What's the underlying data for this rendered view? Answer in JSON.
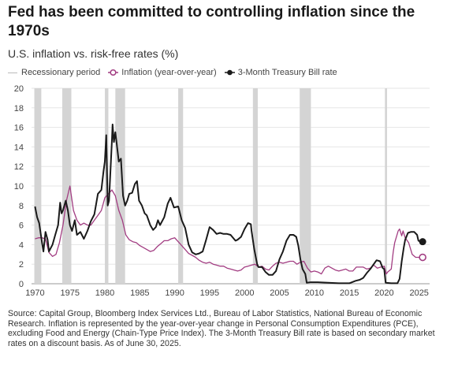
{
  "header": {
    "title": "Fed has been committed to controlling inflation since the 1970s",
    "subtitle": "U.S. inflation vs. risk-free rates (%)"
  },
  "legend": {
    "recession": "Recessionary period",
    "inflation": "Inflation (year-over-year)",
    "tbill": "3-Month Treasury Bill rate"
  },
  "footer": {
    "source": "Source: Capital Group, Bloomberg Index Services Ltd., Bureau of Labor Statistics, National Bureau of Economic Research. Inflation is represented by the year-over-year change in Personal Consumption Expenditures (PCE), excluding Food and Energy (Chain-Type Price Index). The 3-Month Treasury Bill rate is based on secondary market rates on a discount basis. As of June 30, 2025."
  },
  "colors": {
    "inflation": "#a23d82",
    "tbill": "#1a1a1a",
    "recession": "#d4d4d4",
    "grid": "#e6e6e6"
  },
  "chart_data": {
    "type": "line",
    "title": "Fed has been committed to controlling inflation since the 1970s",
    "subtitle": "U.S. inflation vs. risk-free rates (%)",
    "xlim": [
      1969.5,
      2026.5
    ],
    "ylim": [
      0,
      20
    ],
    "x_ticks": [
      "1970",
      "1975",
      "1980",
      "1985",
      "1990",
      "1995",
      "2000",
      "2005",
      "2010",
      "2015",
      "2020",
      "2025"
    ],
    "y_ticks": [
      "0",
      "2",
      "4",
      "6",
      "8",
      "10",
      "12",
      "14",
      "16",
      "18",
      "20"
    ],
    "grid": true,
    "legend_position": "top",
    "recessions": [
      [
        1969.9,
        1970.9
      ],
      [
        1973.9,
        1975.2
      ],
      [
        1980.0,
        1980.5
      ],
      [
        1981.5,
        1982.9
      ],
      [
        1990.5,
        1991.2
      ],
      [
        2001.2,
        2001.9
      ],
      [
        2007.9,
        2009.5
      ],
      [
        2020.1,
        2020.4
      ]
    ],
    "series": [
      {
        "name": "Inflation (year-over-year)",
        "end_marker": "open-circle",
        "points": [
          [
            1970.0,
            4.6
          ],
          [
            1970.5,
            4.7
          ],
          [
            1971.0,
            4.7
          ],
          [
            1971.5,
            4.6
          ],
          [
            1972.0,
            3.2
          ],
          [
            1972.5,
            2.8
          ],
          [
            1973.0,
            3.0
          ],
          [
            1973.5,
            4.2
          ],
          [
            1974.0,
            6.0
          ],
          [
            1974.5,
            8.5
          ],
          [
            1975.0,
            10.0
          ],
          [
            1975.5,
            7.5
          ],
          [
            1976.0,
            6.5
          ],
          [
            1976.5,
            6.0
          ],
          [
            1977.0,
            6.2
          ],
          [
            1977.5,
            6.0
          ],
          [
            1978.0,
            6.0
          ],
          [
            1978.5,
            6.5
          ],
          [
            1979.0,
            7.0
          ],
          [
            1979.5,
            7.5
          ],
          [
            1980.0,
            8.8
          ],
          [
            1980.5,
            9.2
          ],
          [
            1981.0,
            9.6
          ],
          [
            1981.5,
            9.0
          ],
          [
            1982.0,
            7.5
          ],
          [
            1982.5,
            6.5
          ],
          [
            1983.0,
            5.0
          ],
          [
            1983.5,
            4.5
          ],
          [
            1984.0,
            4.3
          ],
          [
            1984.5,
            4.2
          ],
          [
            1985.0,
            3.9
          ],
          [
            1985.5,
            3.7
          ],
          [
            1986.0,
            3.5
          ],
          [
            1986.5,
            3.3
          ],
          [
            1987.0,
            3.4
          ],
          [
            1987.5,
            3.8
          ],
          [
            1988.0,
            4.1
          ],
          [
            1988.5,
            4.4
          ],
          [
            1989.0,
            4.4
          ],
          [
            1989.5,
            4.6
          ],
          [
            1990.0,
            4.7
          ],
          [
            1990.5,
            4.3
          ],
          [
            1991.0,
            3.9
          ],
          [
            1991.5,
            3.5
          ],
          [
            1992.0,
            3.1
          ],
          [
            1992.5,
            2.9
          ],
          [
            1993.0,
            2.7
          ],
          [
            1993.5,
            2.4
          ],
          [
            1994.0,
            2.2
          ],
          [
            1994.5,
            2.1
          ],
          [
            1995.0,
            2.2
          ],
          [
            1995.5,
            2.0
          ],
          [
            1996.0,
            1.9
          ],
          [
            1996.5,
            1.8
          ],
          [
            1997.0,
            1.8
          ],
          [
            1997.5,
            1.6
          ],
          [
            1998.0,
            1.5
          ],
          [
            1998.5,
            1.4
          ],
          [
            1999.0,
            1.3
          ],
          [
            1999.5,
            1.4
          ],
          [
            2000.0,
            1.7
          ],
          [
            2000.5,
            1.8
          ],
          [
            2001.0,
            1.9
          ],
          [
            2001.5,
            2.0
          ],
          [
            2002.0,
            1.7
          ],
          [
            2002.5,
            1.8
          ],
          [
            2003.0,
            1.5
          ],
          [
            2003.5,
            1.4
          ],
          [
            2004.0,
            1.8
          ],
          [
            2004.5,
            2.1
          ],
          [
            2005.0,
            2.2
          ],
          [
            2005.5,
            2.1
          ],
          [
            2006.0,
            2.2
          ],
          [
            2006.5,
            2.3
          ],
          [
            2007.0,
            2.3
          ],
          [
            2007.5,
            2.0
          ],
          [
            2008.0,
            2.2
          ],
          [
            2008.5,
            2.3
          ],
          [
            2009.0,
            1.6
          ],
          [
            2009.5,
            1.2
          ],
          [
            2010.0,
            1.3
          ],
          [
            2010.5,
            1.2
          ],
          [
            2011.0,
            1.0
          ],
          [
            2011.5,
            1.6
          ],
          [
            2012.0,
            1.8
          ],
          [
            2012.5,
            1.6
          ],
          [
            2013.0,
            1.4
          ],
          [
            2013.5,
            1.3
          ],
          [
            2014.0,
            1.4
          ],
          [
            2014.5,
            1.5
          ],
          [
            2015.0,
            1.3
          ],
          [
            2015.5,
            1.3
          ],
          [
            2016.0,
            1.7
          ],
          [
            2016.5,
            1.7
          ],
          [
            2017.0,
            1.7
          ],
          [
            2017.5,
            1.5
          ],
          [
            2018.0,
            1.6
          ],
          [
            2018.5,
            1.9
          ],
          [
            2019.0,
            1.6
          ],
          [
            2019.5,
            1.7
          ],
          [
            2020.0,
            1.8
          ],
          [
            2020.3,
            1.0
          ],
          [
            2020.5,
            1.2
          ],
          [
            2021.0,
            1.5
          ],
          [
            2021.3,
            3.3
          ],
          [
            2021.5,
            4.2
          ],
          [
            2022.0,
            5.4
          ],
          [
            2022.2,
            5.6
          ],
          [
            2022.5,
            4.9
          ],
          [
            2022.7,
            5.4
          ],
          [
            2023.0,
            4.7
          ],
          [
            2023.5,
            4.2
          ],
          [
            2024.0,
            3.0
          ],
          [
            2024.5,
            2.7
          ],
          [
            2025.0,
            2.7
          ],
          [
            2025.5,
            2.7
          ]
        ]
      },
      {
        "name": "3-Month Treasury Bill rate",
        "end_marker": "filled-circle",
        "points": [
          [
            1970.0,
            7.9
          ],
          [
            1970.3,
            6.8
          ],
          [
            1970.6,
            6.2
          ],
          [
            1971.0,
            4.2
          ],
          [
            1971.2,
            3.3
          ],
          [
            1971.5,
            5.3
          ],
          [
            1971.8,
            4.5
          ],
          [
            1972.0,
            3.3
          ],
          [
            1972.5,
            4.0
          ],
          [
            1972.9,
            5.0
          ],
          [
            1973.3,
            6.0
          ],
          [
            1973.6,
            8.3
          ],
          [
            1973.8,
            7.2
          ],
          [
            1974.0,
            7.5
          ],
          [
            1974.4,
            8.5
          ],
          [
            1974.7,
            7.5
          ],
          [
            1975.0,
            6.0
          ],
          [
            1975.3,
            5.4
          ],
          [
            1975.7,
            6.5
          ],
          [
            1976.0,
            5.0
          ],
          [
            1976.5,
            5.3
          ],
          [
            1977.0,
            4.6
          ],
          [
            1977.5,
            5.4
          ],
          [
            1978.0,
            6.4
          ],
          [
            1978.5,
            7.1
          ],
          [
            1979.0,
            9.2
          ],
          [
            1979.5,
            9.6
          ],
          [
            1979.8,
            11.5
          ],
          [
            1980.0,
            12.5
          ],
          [
            1980.2,
            15.2
          ],
          [
            1980.4,
            8.0
          ],
          [
            1980.6,
            8.5
          ],
          [
            1980.9,
            13.0
          ],
          [
            1981.0,
            14.5
          ],
          [
            1981.1,
            16.3
          ],
          [
            1981.3,
            14.5
          ],
          [
            1981.5,
            15.5
          ],
          [
            1981.7,
            14.3
          ],
          [
            1982.0,
            12.5
          ],
          [
            1982.3,
            12.8
          ],
          [
            1982.6,
            9.0
          ],
          [
            1982.9,
            8.0
          ],
          [
            1983.2,
            8.5
          ],
          [
            1983.5,
            9.2
          ],
          [
            1983.9,
            9.3
          ],
          [
            1984.3,
            10.2
          ],
          [
            1984.6,
            10.5
          ],
          [
            1984.9,
            8.5
          ],
          [
            1985.3,
            8.0
          ],
          [
            1985.7,
            7.2
          ],
          [
            1986.0,
            7.0
          ],
          [
            1986.5,
            6.0
          ],
          [
            1986.9,
            5.5
          ],
          [
            1987.3,
            5.8
          ],
          [
            1987.6,
            6.5
          ],
          [
            1987.9,
            6.0
          ],
          [
            1988.5,
            6.8
          ],
          [
            1989.0,
            8.2
          ],
          [
            1989.4,
            8.8
          ],
          [
            1989.9,
            7.8
          ],
          [
            1990.5,
            7.9
          ],
          [
            1991.0,
            6.5
          ],
          [
            1991.5,
            5.7
          ],
          [
            1992.0,
            4.0
          ],
          [
            1992.5,
            3.2
          ],
          [
            1993.0,
            3.0
          ],
          [
            1993.5,
            3.1
          ],
          [
            1994.0,
            3.3
          ],
          [
            1994.5,
            4.5
          ],
          [
            1995.0,
            5.8
          ],
          [
            1995.5,
            5.5
          ],
          [
            1996.0,
            5.1
          ],
          [
            1996.5,
            5.2
          ],
          [
            1997.0,
            5.1
          ],
          [
            1997.5,
            5.1
          ],
          [
            1998.0,
            5.0
          ],
          [
            1998.7,
            4.4
          ],
          [
            1999.0,
            4.5
          ],
          [
            1999.5,
            4.8
          ],
          [
            2000.0,
            5.6
          ],
          [
            2000.5,
            6.2
          ],
          [
            2000.9,
            6.1
          ],
          [
            2001.0,
            5.4
          ],
          [
            2001.4,
            3.5
          ],
          [
            2001.8,
            2.0
          ],
          [
            2002.0,
            1.7
          ],
          [
            2002.5,
            1.7
          ],
          [
            2003.0,
            1.2
          ],
          [
            2003.5,
            0.9
          ],
          [
            2004.0,
            0.9
          ],
          [
            2004.5,
            1.3
          ],
          [
            2005.0,
            2.5
          ],
          [
            2005.5,
            3.3
          ],
          [
            2006.0,
            4.4
          ],
          [
            2006.5,
            5.0
          ],
          [
            2007.0,
            5.0
          ],
          [
            2007.4,
            4.8
          ],
          [
            2007.7,
            3.9
          ],
          [
            2008.0,
            2.5
          ],
          [
            2008.3,
            1.5
          ],
          [
            2008.7,
            1.0
          ],
          [
            2008.9,
            0.1
          ],
          [
            2009.5,
            0.15
          ],
          [
            2010.5,
            0.15
          ],
          [
            2012.0,
            0.1
          ],
          [
            2013.5,
            0.05
          ],
          [
            2015.0,
            0.05
          ],
          [
            2015.9,
            0.3
          ],
          [
            2016.5,
            0.4
          ],
          [
            2017.0,
            0.6
          ],
          [
            2017.5,
            1.1
          ],
          [
            2018.0,
            1.5
          ],
          [
            2018.5,
            2.0
          ],
          [
            2018.9,
            2.4
          ],
          [
            2019.4,
            2.3
          ],
          [
            2019.8,
            1.6
          ],
          [
            2020.0,
            1.5
          ],
          [
            2020.2,
            0.1
          ],
          [
            2021.0,
            0.05
          ],
          [
            2021.9,
            0.05
          ],
          [
            2022.2,
            0.5
          ],
          [
            2022.5,
            2.3
          ],
          [
            2022.8,
            3.7
          ],
          [
            2023.0,
            4.5
          ],
          [
            2023.4,
            5.2
          ],
          [
            2023.8,
            5.3
          ],
          [
            2024.3,
            5.3
          ],
          [
            2024.7,
            5.0
          ],
          [
            2024.9,
            4.4
          ],
          [
            2025.2,
            4.3
          ],
          [
            2025.5,
            4.3
          ]
        ]
      }
    ]
  }
}
